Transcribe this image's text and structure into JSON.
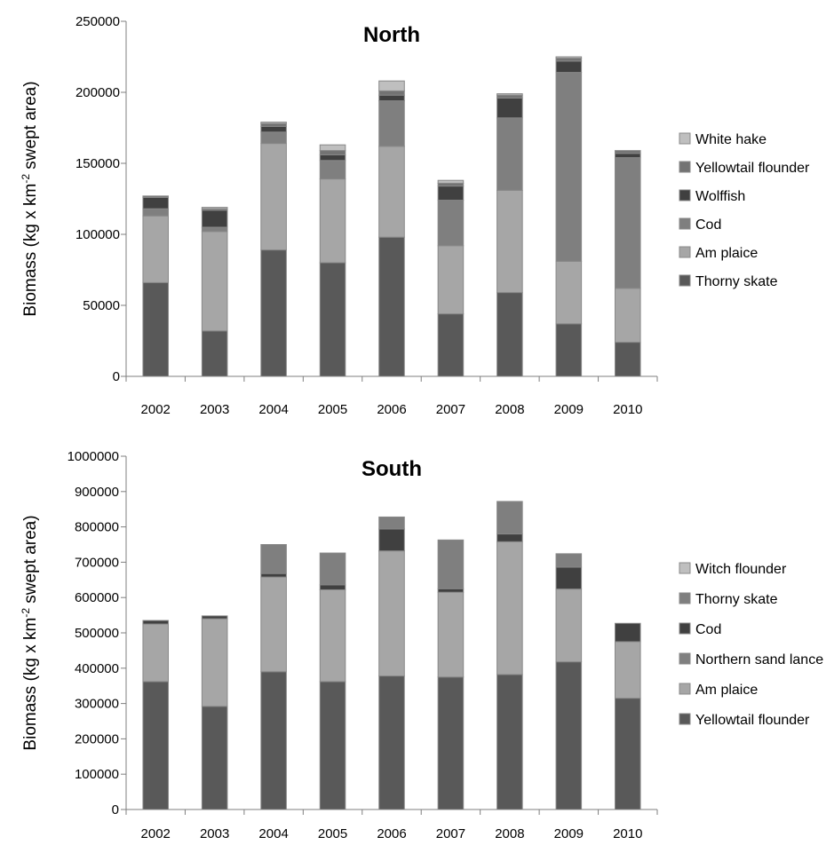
{
  "chart_data": [
    {
      "type": "bar",
      "stacked": true,
      "title": "North",
      "ylabel_main": "Biomass (kg x km",
      "ylabel_sup": "-2",
      "ylabel_tail": " swept area)",
      "ylim": [
        0,
        250000
      ],
      "yticks": [
        "0",
        "50000",
        "100000",
        "150000",
        "200000",
        "250000"
      ],
      "categories": [
        "2002",
        "2003",
        "2004",
        "2005",
        "2006",
        "2007",
        "2008",
        "2009",
        "2010"
      ],
      "legend_position": "right",
      "series": [
        {
          "name": "Thorny skate",
          "color": "#595959",
          "values": [
            66000,
            32000,
            89000,
            80000,
            98000,
            44000,
            59000,
            37000,
            24000
          ]
        },
        {
          "name": "Am plaice",
          "color": "#a6a6a6",
          "values": [
            47000,
            70000,
            75000,
            59000,
            64000,
            48000,
            72000,
            44000,
            38000
          ]
        },
        {
          "name": "Cod",
          "color": "#7f7f7f",
          "values": [
            5000,
            3000,
            8000,
            13000,
            32000,
            32000,
            51000,
            133000,
            92000
          ]
        },
        {
          "name": "Wolffish",
          "color": "#404040",
          "values": [
            8000,
            12000,
            4000,
            4000,
            4000,
            10000,
            14000,
            8000,
            3000
          ]
        },
        {
          "name": "Yellowtail flounder",
          "color": "#737373",
          "values": [
            1000,
            1000,
            2000,
            3000,
            3000,
            2000,
            2000,
            2000,
            2000
          ]
        },
        {
          "name": "White hake",
          "color": "#bfbfbf",
          "values": [
            0,
            1000,
            1000,
            4000,
            7000,
            2000,
            1000,
            1000,
            0
          ]
        }
      ]
    },
    {
      "type": "bar",
      "stacked": true,
      "title": "South",
      "ylabel_main": "Biomass (kg x km",
      "ylabel_sup": "-2",
      "ylabel_tail": " swept area)",
      "ylim": [
        0,
        1000000
      ],
      "yticks": [
        "0",
        "100000",
        "200000",
        "300000",
        "400000",
        "500000",
        "600000",
        "700000",
        "800000",
        "900000",
        "1000000"
      ],
      "categories": [
        "2002",
        "2003",
        "2004",
        "2005",
        "2006",
        "2007",
        "2008",
        "2009",
        "2010"
      ],
      "legend_position": "right",
      "series": [
        {
          "name": "Yellowtail flounder",
          "color": "#595959",
          "values": [
            362000,
            292000,
            390000,
            362000,
            378000,
            375000,
            382000,
            418000,
            315000
          ]
        },
        {
          "name": "Am plaice",
          "color": "#a6a6a6",
          "values": [
            163000,
            248000,
            268000,
            260000,
            354000,
            240000,
            376000,
            206000,
            160000
          ]
        },
        {
          "name": "Northern sand lance",
          "color": "#808080",
          "values": [
            0,
            0,
            0,
            0,
            0,
            0,
            0,
            0,
            0
          ]
        },
        {
          "name": "Cod",
          "color": "#404040",
          "values": [
            10000,
            8000,
            10000,
            14000,
            62000,
            10000,
            22000,
            62000,
            52000
          ]
        },
        {
          "name": "Thorny skate",
          "color": "#7f7f7f",
          "values": [
            0,
            0,
            82000,
            90000,
            34000,
            138000,
            92000,
            38000,
            0
          ]
        },
        {
          "name": "Witch flounder",
          "color": "#bfbfbf",
          "values": [
            0,
            0,
            0,
            0,
            0,
            0,
            0,
            0,
            0
          ]
        }
      ]
    }
  ]
}
